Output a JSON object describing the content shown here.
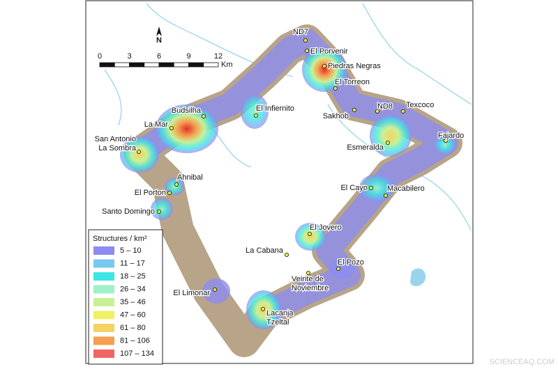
{
  "map": {
    "north": "N",
    "scale": {
      "labels": [
        "0",
        "3",
        "6",
        "9",
        "12"
      ],
      "unit": "Km"
    },
    "places": [
      [
        "ND7"
      ],
      [
        "El Porvenir"
      ],
      [
        "Piedras Negras"
      ],
      [
        "El Torreon"
      ],
      [
        "Sakhob"
      ],
      [
        "ND8"
      ],
      [
        "Texcoco"
      ],
      [
        "Fajardo"
      ],
      [
        "Esmeralda"
      ],
      [
        "El Cayo"
      ],
      [
        "Macabilero"
      ],
      [
        "El Jovero"
      ],
      [
        "La Cabana"
      ],
      [
        "El Pozo"
      ],
      [
        "Veinte de",
        "Noviembre"
      ],
      [
        "Lacanja",
        "Tzeltal"
      ],
      [
        "El Limonar"
      ],
      [
        "Santo Domingo"
      ],
      [
        "El Porton"
      ],
      [
        "Ahnibal"
      ],
      [
        "San Antonio",
        "La Sombra"
      ],
      [
        "La Mar"
      ],
      [
        "Budsilha"
      ],
      [
        "El Infiernito"
      ]
    ],
    "legend": {
      "title": "Structures / km²",
      "items": [
        {
          "label": "5 – 10",
          "color": "#8c8cf0"
        },
        {
          "label": "11 – 17",
          "color": "#78c8f0"
        },
        {
          "label": "18 – 25",
          "color": "#3ce6e6"
        },
        {
          "label": "26 – 34",
          "color": "#a0f0c8"
        },
        {
          "label": "35 – 46",
          "color": "#c8f096"
        },
        {
          "label": "47 – 60",
          "color": "#f0f064"
        },
        {
          "label": "61 – 80",
          "color": "#f5d264"
        },
        {
          "label": "81 – 106",
          "color": "#f5a050"
        },
        {
          "label": "107 – 134",
          "color": "#f06464"
        }
      ]
    }
  },
  "watermark": "SCIENCEAQ.COM"
}
